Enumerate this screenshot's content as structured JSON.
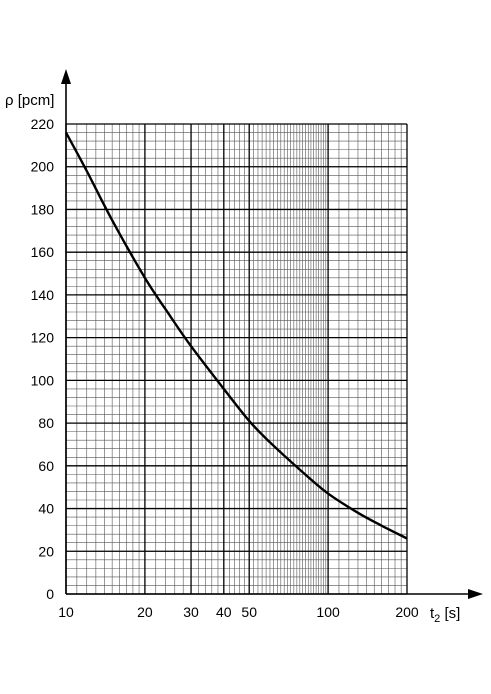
{
  "chart_data": {
    "type": "line",
    "title": "",
    "xlabel": "t",
    "xlabel_sub": "2",
    "xlabel_unit": " [s]",
    "ylabel": "ρ [pcm]",
    "xscale": "log",
    "xlim": [
      10,
      200
    ],
    "ylim": [
      0,
      220
    ],
    "grid": true,
    "xticks": [
      10,
      20,
      30,
      40,
      50,
      100,
      200
    ],
    "xtick_labels": [
      "10",
      "20",
      "30",
      "40",
      "50",
      "100",
      "200"
    ],
    "yticks": [
      0,
      20,
      40,
      60,
      80,
      100,
      120,
      140,
      160,
      180,
      200,
      220
    ],
    "ytick_labels": [
      "0",
      "20",
      "40",
      "60",
      "80",
      "100",
      "120",
      "140",
      "160",
      "180",
      "200",
      "220"
    ],
    "series": [
      {
        "color": "#000000",
        "x": [
          10,
          12,
          15,
          20,
          25,
          30,
          40,
          50,
          60,
          80,
          100,
          130,
          160,
          200
        ],
        "y": [
          216,
          198,
          175,
          148,
          130,
          116,
          96,
          81,
          71,
          57,
          47,
          38,
          32,
          26
        ]
      }
    ]
  }
}
